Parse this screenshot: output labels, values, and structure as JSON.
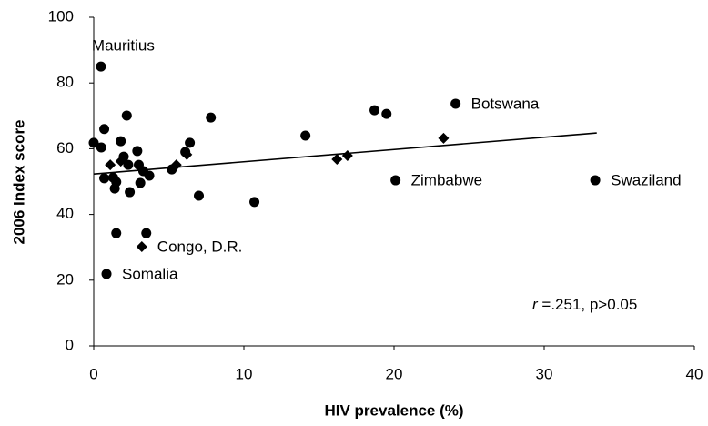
{
  "chart_data": {
    "type": "scatter",
    "x_label": "HIV prevalence (%)",
    "y_label": "2006 Index score",
    "xlim": [
      0,
      40
    ],
    "ylim": [
      0,
      100
    ],
    "xticks": [
      0,
      10,
      20,
      30,
      40
    ],
    "yticks": [
      0,
      20,
      40,
      60,
      80,
      100
    ],
    "grid": false,
    "series": [
      {
        "color": "#000000",
        "marker": "circle",
        "x": [
          0.48,
          0,
          0.5,
          0.7,
          0.7,
          0.85,
          1.3,
          1.4,
          1.5,
          1.5,
          1.8,
          2.0,
          2.2,
          2.3,
          2.4,
          2.9,
          3.0,
          3.1,
          3.3,
          3.5,
          3.7,
          5.2,
          6.1,
          6.4,
          7.0,
          7.8,
          10.7,
          14.1,
          18.7,
          19.5,
          20.1,
          24.1,
          33.4
        ],
        "values": [
          85.0,
          61.8,
          60.4,
          66.0,
          51.0,
          21.9,
          51.2,
          47.9,
          49.9,
          34.3,
          62.3,
          57.6,
          70.1,
          55.1,
          46.8,
          59.3,
          55.1,
          49.6,
          53.2,
          34.3,
          51.8,
          53.7,
          59.0,
          61.8,
          45.7,
          69.5,
          43.8,
          64.0,
          71.7,
          70.6,
          50.4,
          73.7,
          50.4
        ],
        "labels": [
          "Mauritius",
          null,
          null,
          null,
          null,
          "Somalia",
          null,
          null,
          null,
          null,
          null,
          null,
          null,
          null,
          null,
          null,
          null,
          null,
          null,
          null,
          null,
          null,
          null,
          null,
          null,
          null,
          null,
          null,
          null,
          null,
          "Zimbabwe",
          "Botswana",
          "Swaziland"
        ]
      },
      {
        "color": "#000000",
        "marker": "diamond",
        "x": [
          1.1,
          1.8,
          3.2,
          5.5,
          6.2,
          16.2,
          16.9,
          23.3
        ],
        "values": [
          55.1,
          56.2,
          30.2,
          55.1,
          58.2,
          56.8,
          57.9,
          63.2
        ],
        "labels": [
          null,
          null,
          "Congo, D.R.",
          null,
          null,
          null,
          null,
          null
        ]
      }
    ],
    "trendline": {
      "x": [
        0,
        33.5
      ],
      "y": [
        52.3,
        64.8
      ],
      "color": "#000000"
    },
    "annotation": {
      "italic": "r",
      "text": " =.251, p>0.05"
    }
  }
}
